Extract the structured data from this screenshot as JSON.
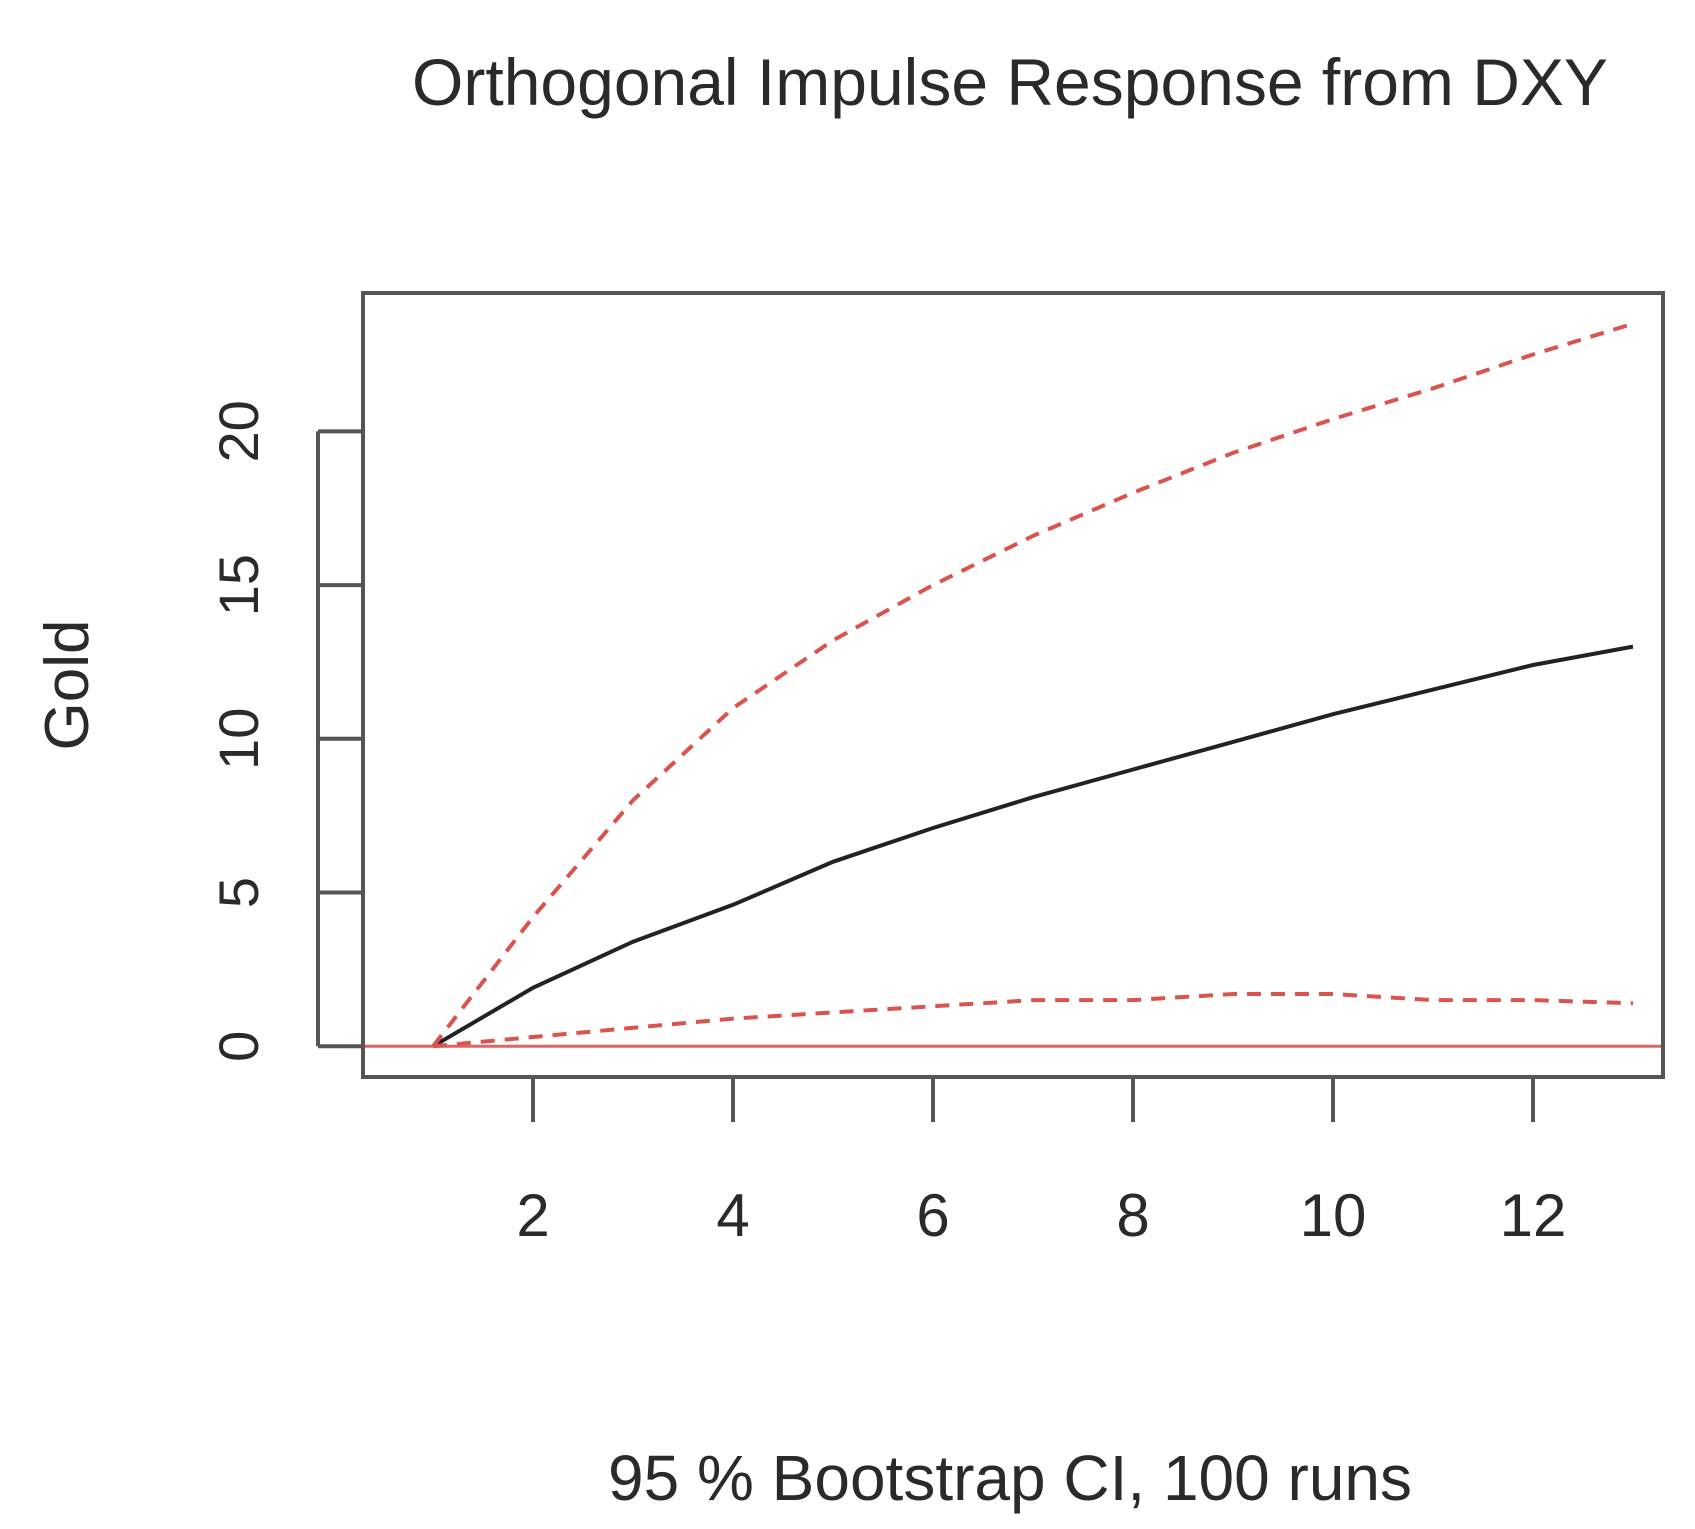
{
  "chart_data": {
    "type": "line",
    "title": "Orthogonal Impulse Response from DXY",
    "xlabel": "95 % Bootstrap CI, 100 runs",
    "ylabel": "Gold",
    "xlim": [
      0.3,
      13.3
    ],
    "ylim": [
      -1,
      24.5
    ],
    "xticks": [
      2,
      4,
      6,
      8,
      10,
      12
    ],
    "yticks": [
      0,
      5,
      10,
      15,
      20
    ],
    "zero_line": 0,
    "grid": false,
    "legend": "none",
    "x": [
      1,
      2,
      3,
      4,
      5,
      6,
      7,
      8,
      9,
      10,
      11,
      12,
      13
    ],
    "series": [
      {
        "role": "response",
        "style": "solid",
        "color": "#222222",
        "values": [
          0,
          1.9,
          3.4,
          4.6,
          6.0,
          7.1,
          8.1,
          9.0,
          9.9,
          10.8,
          11.6,
          12.4,
          13.0
        ]
      },
      {
        "role": "upper",
        "style": "dashed",
        "color": "#d9534f",
        "values": [
          0,
          4.2,
          8.0,
          11.0,
          13.2,
          15.0,
          16.6,
          18.0,
          19.3,
          20.4,
          21.4,
          22.5,
          23.5
        ]
      },
      {
        "role": "lower",
        "style": "dashed",
        "color": "#d9534f",
        "values": [
          0,
          0.3,
          0.6,
          0.9,
          1.1,
          1.3,
          1.5,
          1.5,
          1.7,
          1.7,
          1.5,
          1.5,
          1.4
        ]
      }
    ],
    "colors": {
      "zero_line": "#e06666",
      "axis": "#555555"
    }
  }
}
